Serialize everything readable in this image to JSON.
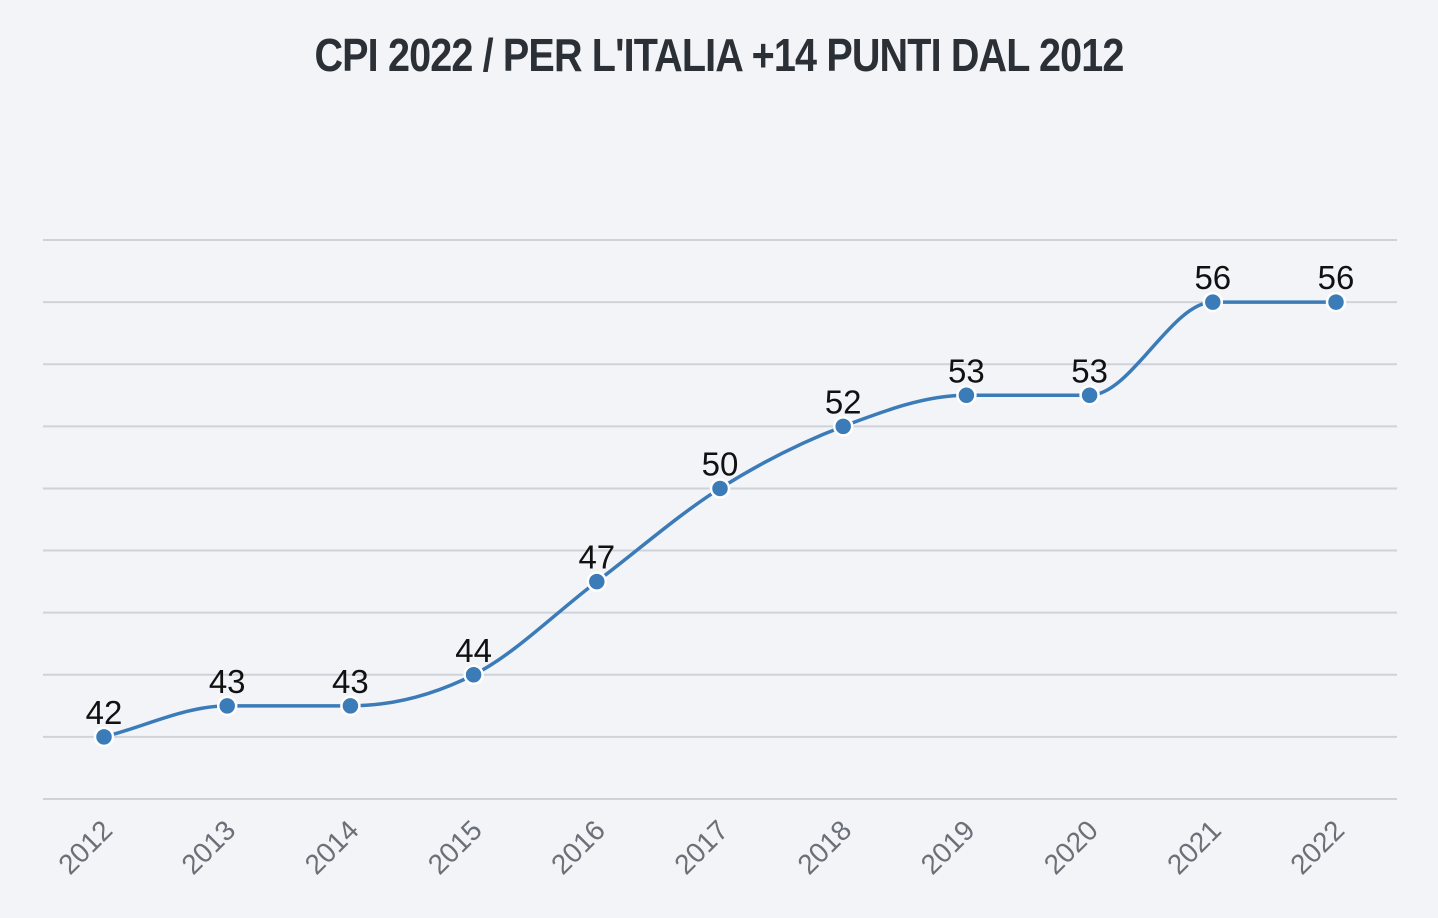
{
  "chart_data": {
    "type": "line",
    "title": "CPI 2022 / PER L'ITALIA +14 PUNTI DAL 2012",
    "x": [
      "2012",
      "2013",
      "2014",
      "2015",
      "2016",
      "2017",
      "2018",
      "2019",
      "2020",
      "2021",
      "2022"
    ],
    "values": [
      42,
      43,
      43,
      44,
      47,
      50,
      52,
      53,
      53,
      56,
      56
    ],
    "ylim": [
      40,
      58
    ],
    "grid": true,
    "line_color": "#3a7bb8",
    "point_color": "#3a7bb8",
    "grid_color": "#cfd3d9",
    "background": "#f2f4f7",
    "show_data_labels": true,
    "legend": "none"
  }
}
